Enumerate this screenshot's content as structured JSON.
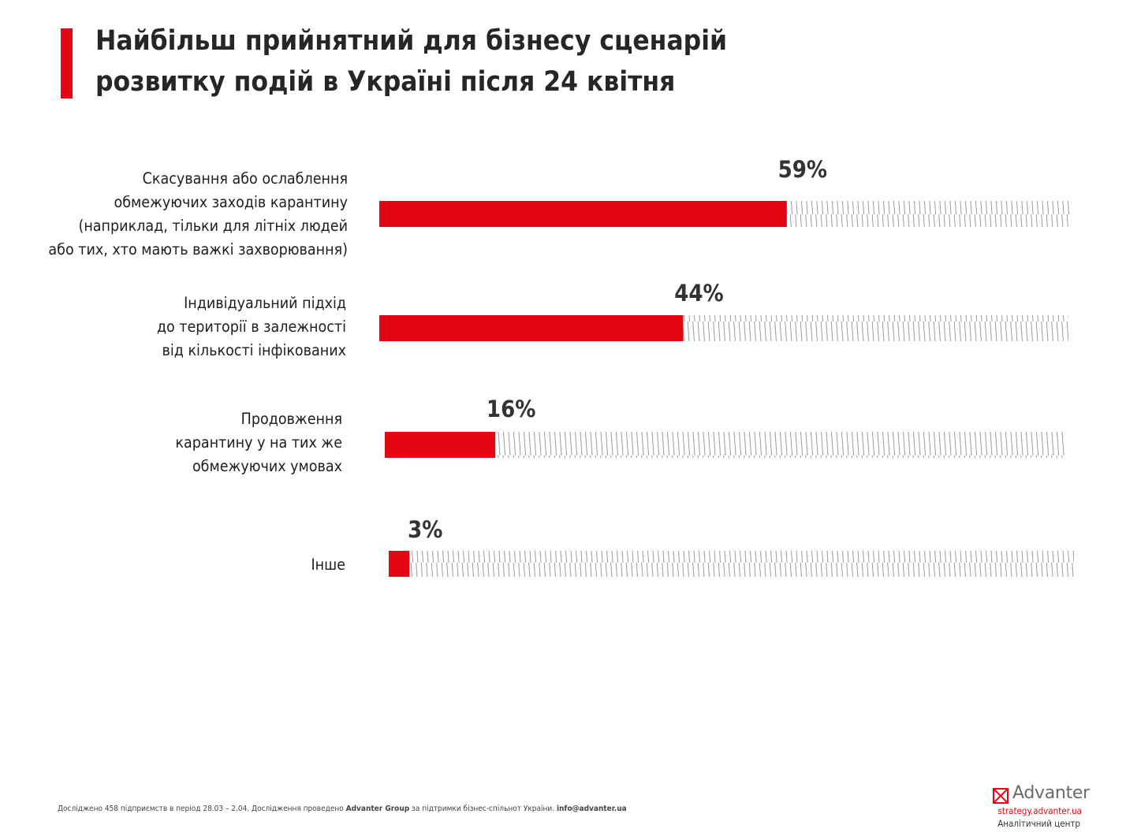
{
  "title": {
    "line1": "Найбільш прийнятний для бізнесу сценарій",
    "line2": "розвитку подій в Україні після 24 квітня"
  },
  "colors": {
    "accent": "#e30613",
    "hatch": "#9a9a9a",
    "text": "#222222"
  },
  "chart_data": {
    "type": "bar",
    "orientation": "horizontal",
    "title": "Найбільш прийнятний для бізнесу сценарій розвитку подій в Україні після 24 квітня",
    "categories": [
      [
        "Скасування або ослаблення",
        "обмежуючих заходів карантину",
        "(наприклад, тільки для літніх людей",
        "або тих, хто мають важкі захворювання)"
      ],
      [
        "Індивідуальний підхід",
        "до території в залежності",
        "від кількості інфікованих"
      ],
      [
        "Продовження",
        "карантину у на тих же",
        "обмежуючих умовах"
      ],
      [
        "Інше"
      ]
    ],
    "values": [
      59,
      44,
      16,
      3
    ],
    "value_labels": [
      "59%",
      "44%",
      "16%",
      "3%"
    ],
    "xlim": [
      0,
      100
    ],
    "unit": "%",
    "grid": false,
    "legend": "none",
    "remainder_style": "hatched"
  },
  "footnote": {
    "pre": "Досліджено 458 підприємств в період 28.03 – 2.04. Дослідження проведено ",
    "org": "Advanter Group",
    "mid": " за підтримки бізнес-спільнот України. ",
    "email": "info@advanter.ua"
  },
  "logo": {
    "icon": "envelope-x-icon",
    "name": "Advanter",
    "url": "strategy.advanter.ua",
    "subtitle": "Аналітичний центр"
  }
}
